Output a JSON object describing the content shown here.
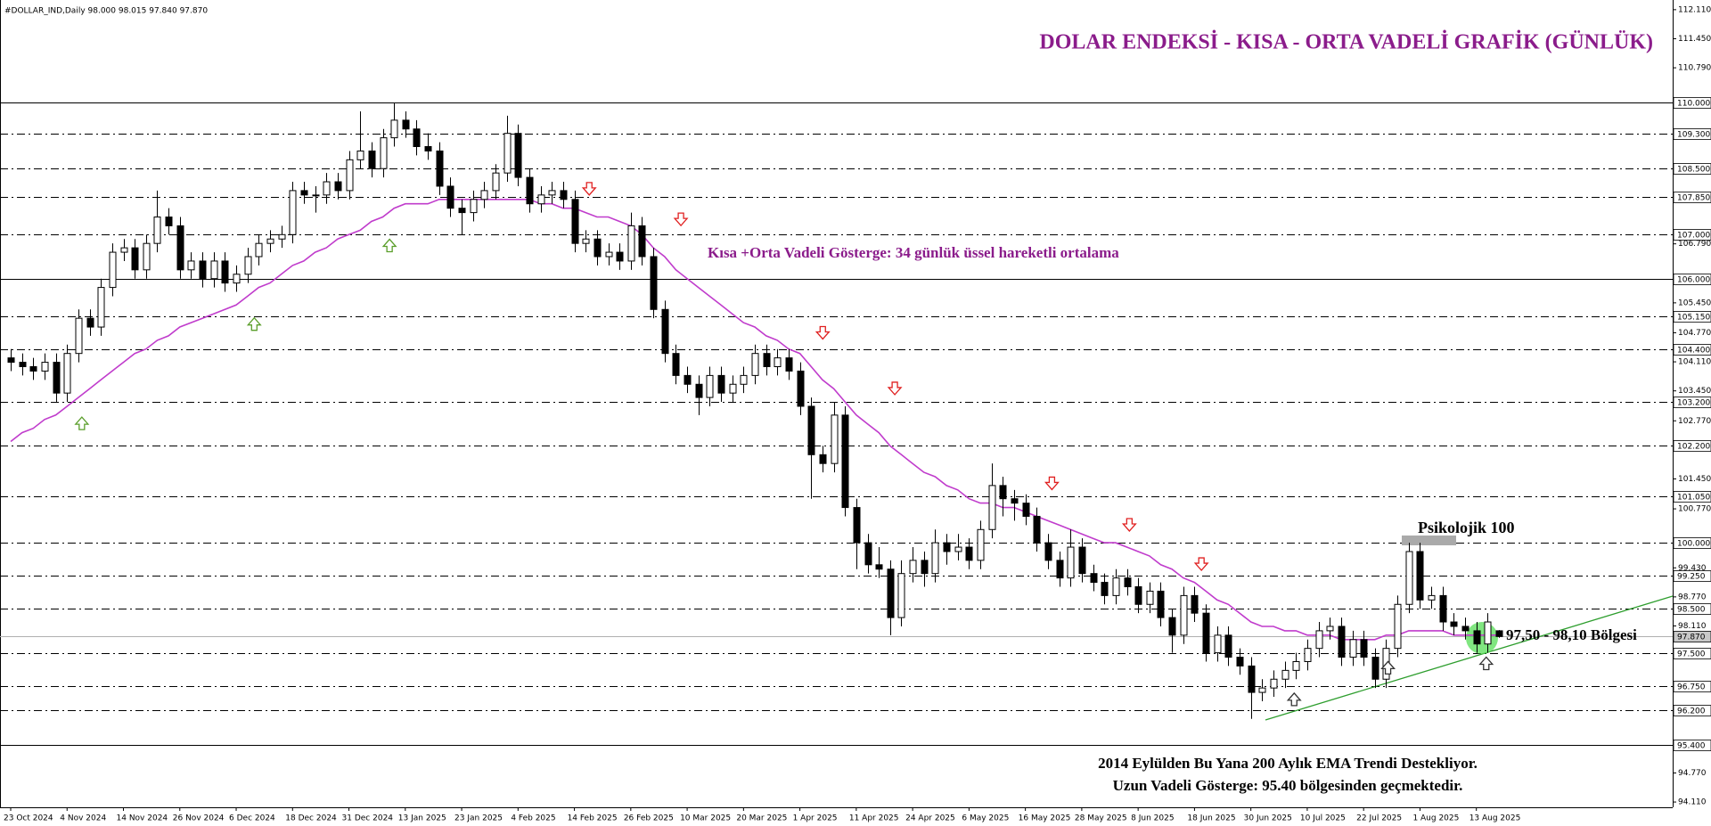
{
  "chart_data": {
    "type": "candlestick",
    "header": "#DOLLAR_IND,Daily  98.000 98.015 97.840 97.870",
    "title": "DOLAR ENDEKSİ - KISA - ORTA VADELİ GRAFİK (GÜNLÜK)",
    "annotations": {
      "ema_note": "Kısa +Orta Vadeli Gösterge: 34 günlük üssel hareketli ortalama",
      "psych": "Psikolojik 100",
      "zone": "97,50 - 98,10 Bölgesi",
      "long_1": "2014 Eylülden Bu Yana 200 Aylık EMA Trendi Destekliyor.",
      "long_2": "Uzun Vadeli Gösterge: 95.40 bölgesinden geçmektedir."
    },
    "categories": [
      "23 Oct 2024",
      null,
      null,
      null,
      null,
      "4 Nov 2024",
      null,
      null,
      null,
      null,
      "14 Nov 2024",
      null,
      null,
      null,
      null,
      "26 Nov 2024",
      null,
      null,
      null,
      null,
      "6 Dec 2024",
      null,
      null,
      null,
      null,
      "18 Dec 2024",
      null,
      null,
      null,
      null,
      "31 Dec 2024",
      null,
      null,
      null,
      null,
      "13 Jan 2025",
      null,
      null,
      null,
      null,
      "23 Jan 2025",
      null,
      null,
      null,
      null,
      "4 Feb 2025",
      null,
      null,
      null,
      null,
      "14 Feb 2025",
      null,
      null,
      null,
      null,
      "26 Feb 2025",
      null,
      null,
      null,
      null,
      "10 Mar 2025",
      null,
      null,
      null,
      null,
      "20 Mar 2025",
      null,
      null,
      null,
      null,
      "1 Apr 2025",
      null,
      null,
      null,
      null,
      "11 Apr 2025",
      null,
      null,
      null,
      null,
      "24 Apr 2025",
      null,
      null,
      null,
      null,
      "6 May 2025",
      null,
      null,
      null,
      null,
      "16 May 2025",
      null,
      null,
      null,
      null,
      "28 May 2025",
      null,
      null,
      null,
      null,
      "8 Jun 2025",
      null,
      null,
      null,
      null,
      "18 Jun 2025",
      null,
      null,
      null,
      null,
      "30 Jun 2025",
      null,
      null,
      null,
      null,
      "10 Jul 2025",
      null,
      null,
      null,
      null,
      "22 Jul 2025",
      null,
      null,
      null,
      null,
      "1 Aug 2025",
      null,
      null,
      null,
      null,
      "13 Aug 2025",
      null,
      null
    ],
    "candles": [
      [
        104.2,
        104.4,
        103.9,
        104.1
      ],
      [
        104.1,
        104.3,
        103.8,
        104.0
      ],
      [
        104.0,
        104.2,
        103.7,
        103.9
      ],
      [
        103.9,
        104.3,
        103.7,
        104.1
      ],
      [
        104.1,
        104.3,
        103.2,
        103.4
      ],
      [
        103.4,
        104.5,
        103.2,
        104.3
      ],
      [
        104.3,
        105.3,
        104.1,
        105.1
      ],
      [
        105.1,
        105.3,
        104.7,
        104.9
      ],
      [
        104.9,
        106.0,
        104.7,
        105.8
      ],
      [
        105.8,
        106.8,
        105.6,
        106.6
      ],
      [
        106.6,
        106.9,
        106.4,
        106.7
      ],
      [
        106.7,
        106.9,
        106.0,
        106.2
      ],
      [
        106.2,
        107.0,
        106.0,
        106.8
      ],
      [
        106.8,
        108.0,
        106.6,
        107.4
      ],
      [
        107.4,
        107.6,
        107.0,
        107.2
      ],
      [
        107.2,
        107.4,
        106.0,
        106.2
      ],
      [
        106.2,
        106.6,
        106.0,
        106.4
      ],
      [
        106.4,
        106.6,
        105.8,
        106.0
      ],
      [
        106.0,
        106.6,
        105.8,
        106.4
      ],
      [
        106.4,
        106.6,
        105.7,
        105.9
      ],
      [
        105.9,
        106.3,
        105.7,
        106.1
      ],
      [
        106.1,
        106.7,
        105.9,
        106.5
      ],
      [
        106.5,
        107.0,
        106.3,
        106.8
      ],
      [
        106.8,
        107.1,
        106.6,
        106.9
      ],
      [
        106.9,
        107.2,
        106.7,
        107.0
      ],
      [
        107.0,
        108.2,
        106.8,
        108.0
      ],
      [
        108.0,
        108.2,
        107.7,
        107.9
      ],
      [
        107.9,
        108.1,
        107.5,
        107.9
      ],
      [
        107.9,
        108.4,
        107.7,
        108.2
      ],
      [
        108.2,
        108.4,
        107.8,
        108.0
      ],
      [
        108.0,
        108.9,
        107.8,
        108.7
      ],
      [
        108.7,
        109.8,
        108.5,
        108.9
      ],
      [
        108.9,
        109.1,
        108.3,
        108.5
      ],
      [
        108.5,
        109.4,
        108.3,
        109.2
      ],
      [
        109.2,
        110.0,
        109.0,
        109.6
      ],
      [
        109.6,
        109.8,
        109.2,
        109.4
      ],
      [
        109.4,
        109.6,
        108.8,
        109.0
      ],
      [
        109.0,
        109.3,
        108.7,
        108.9
      ],
      [
        108.9,
        109.1,
        107.9,
        108.1
      ],
      [
        108.1,
        108.3,
        107.4,
        107.6
      ],
      [
        107.6,
        107.8,
        107.0,
        107.5
      ],
      [
        107.5,
        108.0,
        107.3,
        107.8
      ],
      [
        107.8,
        108.2,
        107.6,
        108.0
      ],
      [
        108.0,
        108.6,
        107.8,
        108.4
      ],
      [
        108.4,
        109.7,
        108.2,
        109.3
      ],
      [
        109.3,
        109.5,
        108.1,
        108.3
      ],
      [
        108.3,
        108.5,
        107.5,
        107.7
      ],
      [
        107.7,
        108.1,
        107.5,
        107.9
      ],
      [
        107.9,
        108.2,
        107.7,
        108.0
      ],
      [
        108.0,
        108.2,
        107.6,
        107.8
      ],
      [
        107.8,
        108.0,
        106.6,
        106.8
      ],
      [
        106.8,
        107.1,
        106.6,
        106.9
      ],
      [
        106.9,
        107.1,
        106.3,
        106.5
      ],
      [
        106.5,
        106.8,
        106.3,
        106.6
      ],
      [
        106.6,
        106.8,
        106.2,
        106.4
      ],
      [
        106.4,
        107.5,
        106.2,
        107.2
      ],
      [
        107.2,
        107.4,
        106.3,
        106.5
      ],
      [
        106.5,
        106.7,
        105.1,
        105.3
      ],
      [
        105.3,
        105.5,
        104.1,
        104.3
      ],
      [
        104.3,
        104.5,
        103.6,
        103.8
      ],
      [
        103.8,
        104.0,
        103.4,
        103.6
      ],
      [
        103.6,
        103.8,
        102.9,
        103.3
      ],
      [
        103.3,
        104.0,
        103.1,
        103.8
      ],
      [
        103.8,
        104.0,
        103.2,
        103.4
      ],
      [
        103.4,
        103.8,
        103.2,
        103.6
      ],
      [
        103.6,
        104.0,
        103.4,
        103.8
      ],
      [
        103.8,
        104.5,
        103.6,
        104.3
      ],
      [
        104.3,
        104.5,
        103.8,
        104.0
      ],
      [
        104.0,
        104.4,
        103.8,
        104.2
      ],
      [
        104.2,
        104.4,
        103.7,
        103.9
      ],
      [
        103.9,
        104.1,
        102.9,
        103.1
      ],
      [
        103.1,
        103.3,
        101.0,
        102.0
      ],
      [
        102.0,
        102.2,
        101.6,
        101.8
      ],
      [
        101.8,
        103.2,
        101.6,
        102.9
      ],
      [
        102.9,
        103.1,
        100.6,
        100.8
      ],
      [
        100.8,
        101.0,
        99.4,
        100.0
      ],
      [
        100.0,
        100.2,
        99.3,
        99.5
      ],
      [
        99.5,
        99.9,
        99.2,
        99.4
      ],
      [
        99.4,
        99.6,
        97.9,
        98.3
      ],
      [
        98.3,
        99.6,
        98.1,
        99.3
      ],
      [
        99.3,
        99.9,
        99.1,
        99.6
      ],
      [
        99.6,
        99.8,
        99.0,
        99.3
      ],
      [
        99.3,
        100.3,
        99.1,
        100.0
      ],
      [
        100.0,
        100.2,
        99.5,
        99.8
      ],
      [
        99.8,
        100.2,
        99.6,
        99.9
      ],
      [
        99.9,
        100.1,
        99.4,
        99.6
      ],
      [
        99.6,
        100.5,
        99.4,
        100.3
      ],
      [
        100.3,
        101.8,
        100.1,
        101.3
      ],
      [
        101.3,
        101.5,
        100.6,
        101.0
      ],
      [
        101.0,
        101.2,
        100.5,
        100.9
      ],
      [
        100.9,
        101.1,
        100.4,
        100.6
      ],
      [
        100.6,
        100.8,
        99.8,
        100.0
      ],
      [
        100.0,
        100.2,
        99.4,
        99.6
      ],
      [
        99.6,
        99.8,
        99.0,
        99.2
      ],
      [
        99.2,
        100.3,
        99.0,
        99.9
      ],
      [
        99.9,
        100.1,
        99.1,
        99.3
      ],
      [
        99.3,
        99.5,
        98.9,
        99.1
      ],
      [
        99.1,
        99.3,
        98.6,
        98.8
      ],
      [
        98.8,
        99.4,
        98.6,
        99.2
      ],
      [
        99.2,
        99.4,
        98.8,
        99.0
      ],
      [
        99.0,
        99.2,
        98.4,
        98.6
      ],
      [
        98.6,
        99.1,
        98.4,
        98.9
      ],
      [
        98.9,
        99.1,
        98.1,
        98.3
      ],
      [
        98.3,
        98.5,
        97.5,
        97.9
      ],
      [
        97.9,
        99.0,
        97.7,
        98.8
      ],
      [
        98.8,
        99.0,
        98.2,
        98.4
      ],
      [
        98.4,
        98.6,
        97.3,
        97.5
      ],
      [
        97.5,
        98.1,
        97.3,
        97.9
      ],
      [
        97.9,
        98.1,
        97.2,
        97.4
      ],
      [
        97.4,
        97.6,
        97.0,
        97.2
      ],
      [
        97.2,
        97.4,
        96.0,
        96.6
      ],
      [
        96.6,
        96.9,
        96.4,
        96.7
      ],
      [
        96.7,
        97.1,
        96.5,
        96.9
      ],
      [
        96.9,
        97.3,
        96.7,
        97.1
      ],
      [
        97.1,
        97.5,
        96.9,
        97.3
      ],
      [
        97.3,
        97.8,
        97.1,
        97.6
      ],
      [
        97.6,
        98.2,
        97.4,
        98.0
      ],
      [
        98.0,
        98.3,
        97.8,
        98.1
      ],
      [
        98.1,
        98.3,
        97.2,
        97.4
      ],
      [
        97.4,
        98.0,
        97.2,
        97.8
      ],
      [
        97.8,
        98.0,
        97.2,
        97.4
      ],
      [
        97.4,
        97.6,
        96.7,
        96.9
      ],
      [
        96.9,
        97.8,
        96.7,
        97.6
      ],
      [
        97.6,
        98.8,
        97.4,
        98.6
      ],
      [
        98.6,
        100.0,
        98.4,
        99.8
      ],
      [
        99.8,
        100.0,
        98.5,
        98.7
      ],
      [
        98.7,
        99.0,
        98.5,
        98.8
      ],
      [
        98.8,
        99.0,
        98.0,
        98.2
      ],
      [
        98.2,
        98.4,
        97.9,
        98.1
      ],
      [
        98.1,
        98.3,
        97.8,
        98.0
      ],
      [
        98.0,
        98.2,
        97.5,
        97.7
      ],
      [
        97.7,
        98.4,
        97.5,
        98.2
      ],
      [
        98.0,
        98.015,
        97.84,
        97.87
      ]
    ],
    "up_color": "#ffffff",
    "down_color": "#000000",
    "ema_color": "#c03ccc",
    "ema_values": [
      102.3,
      102.5,
      102.6,
      102.8,
      102.9,
      103.1,
      103.3,
      103.5,
      103.7,
      103.9,
      104.1,
      104.3,
      104.4,
      104.6,
      104.7,
      104.9,
      105.0,
      105.1,
      105.2,
      105.3,
      105.4,
      105.6,
      105.8,
      105.9,
      106.1,
      106.3,
      106.4,
      106.6,
      106.7,
      106.9,
      107.0,
      107.1,
      107.3,
      107.4,
      107.6,
      107.7,
      107.7,
      107.7,
      107.8,
      107.8,
      107.8,
      107.8,
      107.8,
      107.8,
      107.8,
      107.8,
      107.8,
      107.7,
      107.7,
      107.6,
      107.6,
      107.5,
      107.4,
      107.4,
      107.3,
      107.2,
      107.0,
      106.7,
      106.5,
      106.2,
      106.0,
      105.8,
      105.6,
      105.4,
      105.2,
      105.0,
      104.9,
      104.7,
      104.6,
      104.4,
      104.3,
      104.0,
      103.7,
      103.5,
      103.2,
      102.9,
      102.7,
      102.5,
      102.2,
      102.0,
      101.8,
      101.6,
      101.5,
      101.3,
      101.2,
      101.0,
      100.9,
      100.9,
      100.8,
      100.8,
      100.7,
      100.6,
      100.5,
      100.4,
      100.3,
      100.2,
      100.1,
      100.0,
      100.0,
      99.9,
      99.8,
      99.7,
      99.5,
      99.4,
      99.2,
      99.1,
      98.9,
      98.7,
      98.6,
      98.4,
      98.2,
      98.1,
      98.1,
      98.0,
      98.0,
      97.9,
      97.9,
      97.9,
      97.8,
      97.8,
      97.8,
      97.8,
      97.9,
      97.9,
      98.0,
      98.0,
      98.0,
      98.0,
      97.9,
      97.9,
      97.9,
      97.9,
      97.9
    ],
    "ylim": [
      93.99,
      112.33
    ],
    "yticks": [
      {
        "value": 112.11,
        "label": "112.110"
      },
      {
        "value": 111.45,
        "label": "111.450"
      },
      {
        "value": 110.79,
        "label": "110.790"
      },
      {
        "value": 106.79,
        "label": "106.790"
      },
      {
        "value": 105.45,
        "label": "105.450"
      },
      {
        "value": 104.77,
        "label": "104.770"
      },
      {
        "value": 104.11,
        "label": "104.110"
      },
      {
        "value": 103.45,
        "label": "103.450"
      },
      {
        "value": 102.77,
        "label": "102.770"
      },
      {
        "value": 101.45,
        "label": "101.450"
      },
      {
        "value": 100.77,
        "label": "100.770"
      },
      {
        "value": 99.43,
        "label": "99.430"
      },
      {
        "value": 98.77,
        "label": "98.770"
      },
      {
        "value": 98.11,
        "label": "98.110"
      },
      {
        "value": 94.77,
        "label": "94.770"
      },
      {
        "value": 94.11,
        "label": "94.110"
      }
    ],
    "levels": [
      {
        "value": 110,
        "label": "110.000",
        "style": "solid"
      },
      {
        "value": 109.3,
        "label": "109.300",
        "style": "dashdot"
      },
      {
        "value": 108.5,
        "label": "108.500",
        "style": "dashdot"
      },
      {
        "value": 107.85,
        "label": "107.850",
        "style": "dashdot"
      },
      {
        "value": 107,
        "label": "107.000",
        "style": "dashdot"
      },
      {
        "value": 106,
        "label": "106.000",
        "style": "solid"
      },
      {
        "value": 105.15,
        "label": "105.150",
        "style": "dashdot"
      },
      {
        "value": 104.4,
        "label": "104.400",
        "style": "dashdot"
      },
      {
        "value": 103.2,
        "label": "103.200",
        "style": "dashdot"
      },
      {
        "value": 102.2,
        "label": "102.200",
        "style": "dashdot"
      },
      {
        "value": 101.05,
        "label": "101.050",
        "style": "dashdot"
      },
      {
        "value": 100,
        "label": "100.000",
        "style": "dashdot"
      },
      {
        "value": 99.25,
        "label": "99.250",
        "style": "dashdot"
      },
      {
        "value": 98.5,
        "label": "98.500",
        "style": "dashdot"
      },
      {
        "value": 97.5,
        "label": "97.500",
        "style": "dashdot"
      },
      {
        "value": 96.75,
        "label": "96.750",
        "style": "dashdot"
      },
      {
        "value": 96.2,
        "label": "96.200",
        "style": "dashdot"
      },
      {
        "value": 95.4,
        "label": "95.400",
        "style": "solid"
      }
    ],
    "current_price": {
      "value": 97.87,
      "label": "97.870"
    }
  }
}
